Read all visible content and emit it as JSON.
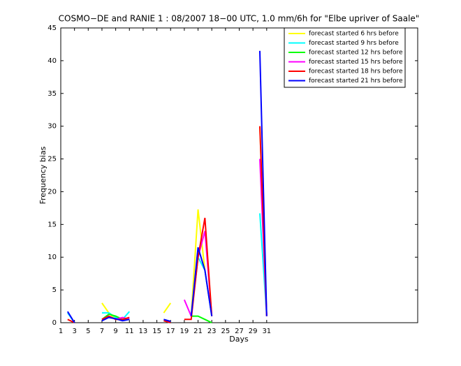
{
  "chart_data": {
    "type": "line",
    "title": "COSMO−DE and RANIE 1 : 08/2007 18−00 UTC, 1.0 mm/6h for \"Elbe upriver of Saale\"",
    "x_label": "Days",
    "y_label": "Frequency bias",
    "x": [
      1,
      2,
      3,
      4,
      5,
      6,
      7,
      8,
      9,
      10,
      11,
      12,
      13,
      14,
      15,
      16,
      17,
      18,
      19,
      20,
      21,
      22,
      23,
      24,
      25,
      26,
      27,
      28,
      29,
      30,
      31
    ],
    "xlim": [
      1,
      53
    ],
    "ylim": [
      0,
      45
    ],
    "xticks": [
      1,
      3,
      5,
      7,
      9,
      11,
      13,
      15,
      17,
      19,
      21,
      23,
      25,
      27,
      29,
      31
    ],
    "yticks": [
      0,
      5,
      10,
      15,
      20,
      25,
      30,
      35,
      40,
      45
    ],
    "legend": "upper right",
    "series": [
      {
        "name": "forecast started 6 hrs before",
        "color": "#ffff00",
        "values": [
          null,
          null,
          null,
          null,
          null,
          null,
          3,
          1.5,
          0.5,
          0.5,
          0.5,
          null,
          null,
          null,
          null,
          1.5,
          3,
          null,
          null,
          1,
          17.3,
          8,
          1,
          null,
          null,
          null,
          null,
          null,
          null,
          30,
          1
        ]
      },
      {
        "name": "forecast started 9 hrs before",
        "color": "#00ffff",
        "values": [
          null,
          1.5,
          0,
          null,
          null,
          null,
          1.5,
          1.5,
          0.8,
          0.5,
          1.7,
          null,
          null,
          null,
          null,
          0.3,
          0,
          null,
          null,
          1,
          10,
          8,
          1,
          null,
          null,
          null,
          null,
          null,
          null,
          16.7,
          1
        ]
      },
      {
        "name": "forecast started 12 hrs before",
        "color": "#00ff00",
        "values": [
          null,
          null,
          null,
          null,
          null,
          null,
          0.5,
          1.3,
          1,
          0.5,
          0.5,
          null,
          null,
          null,
          null,
          null,
          null,
          null,
          null,
          1,
          1,
          0.5,
          0,
          null,
          null,
          null,
          null,
          null,
          null,
          null,
          null
        ]
      },
      {
        "name": "forecast started 15 hrs before",
        "color": "#ff00ff",
        "values": [
          null,
          null,
          null,
          null,
          null,
          null,
          0.5,
          1,
          0.5,
          0.8,
          0.5,
          null,
          null,
          null,
          null,
          null,
          null,
          null,
          3.5,
          1,
          10,
          14,
          1,
          null,
          null,
          null,
          null,
          null,
          null,
          25,
          1
        ]
      },
      {
        "name": "forecast started 18 hrs before",
        "color": "#ff0000",
        "values": [
          null,
          0.5,
          0,
          null,
          null,
          null,
          0.5,
          1,
          0.5,
          0.5,
          0.8,
          null,
          null,
          null,
          null,
          0.3,
          0,
          null,
          0.5,
          0.5,
          10,
          16,
          1,
          null,
          null,
          null,
          null,
          null,
          null,
          30,
          1
        ]
      },
      {
        "name": "forecast started 21 hrs before",
        "color": "#0000ff",
        "values": [
          null,
          1.7,
          0,
          null,
          null,
          null,
          0.3,
          0.8,
          0.6,
          0.3,
          0.5,
          null,
          null,
          null,
          null,
          0.5,
          0.2,
          null,
          null,
          1,
          11.5,
          8,
          1,
          null,
          null,
          null,
          null,
          null,
          null,
          41.5,
          1
        ]
      }
    ]
  }
}
